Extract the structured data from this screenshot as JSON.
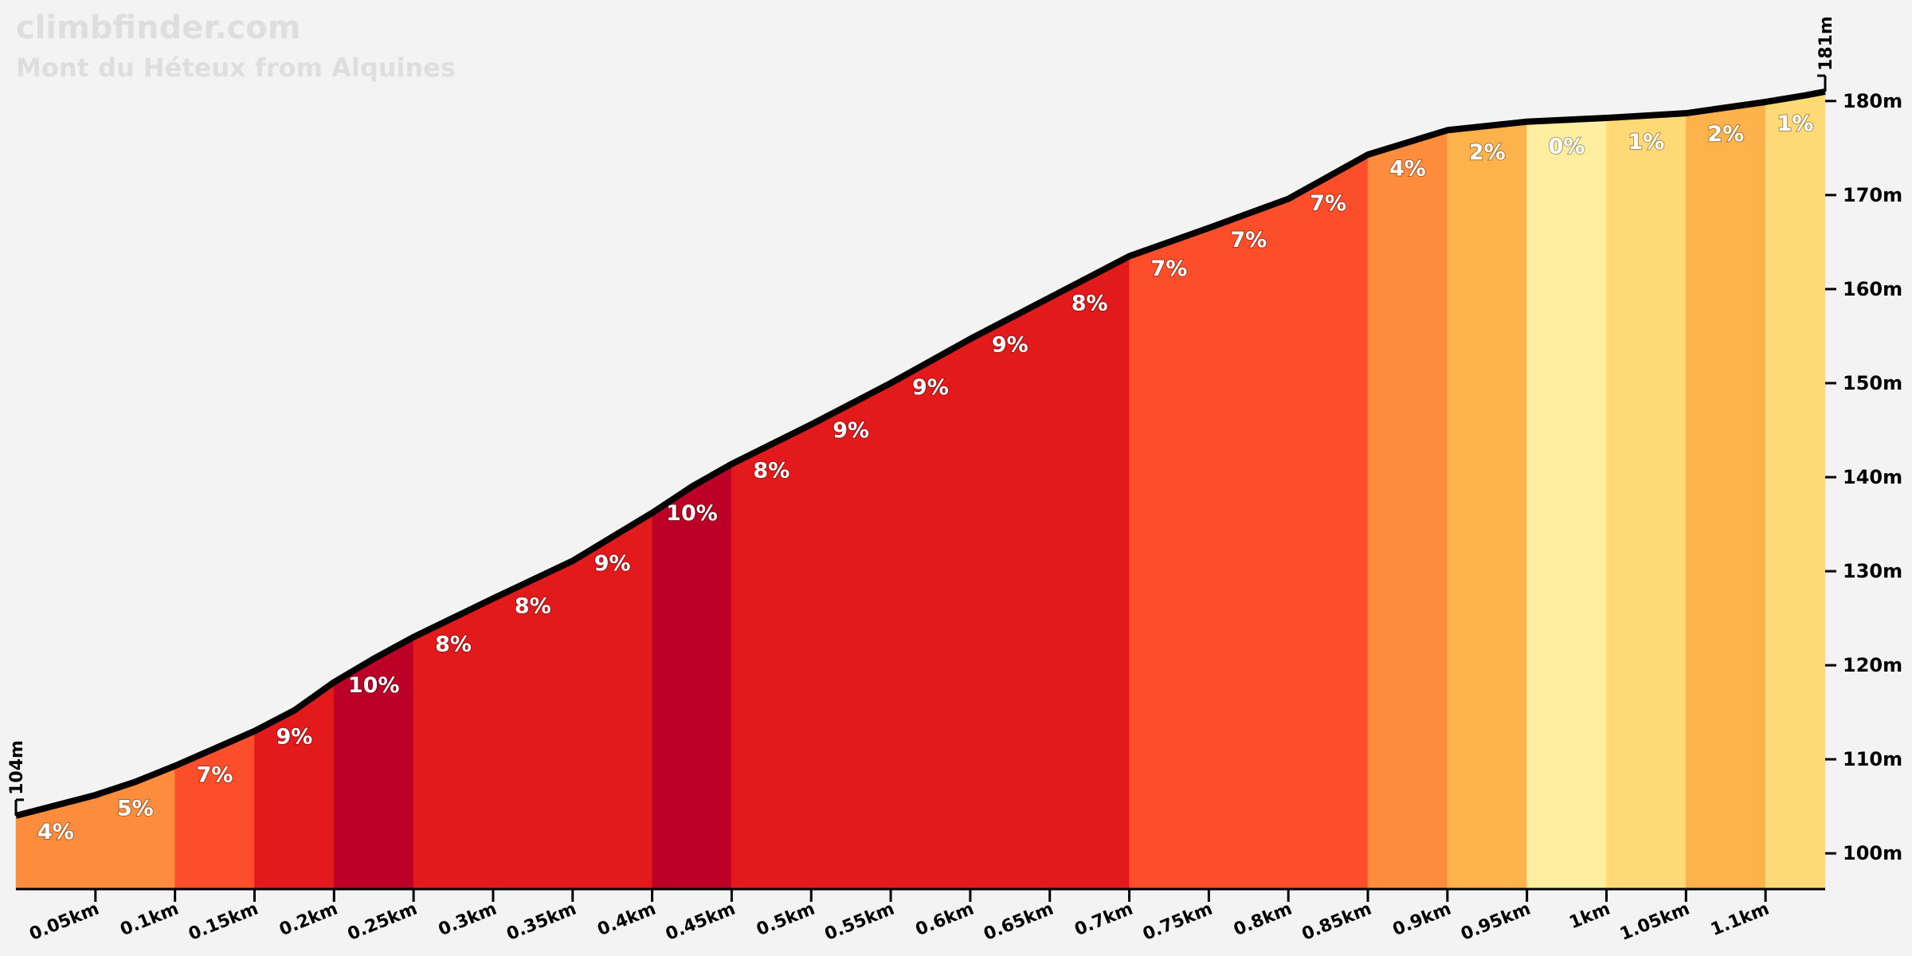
{
  "chart_data": {
    "type": "elevation-profile",
    "title": "climbfinder.com",
    "subtitle": "Mont du Héteux from Alquines",
    "x": [
      0,
      0.05,
      0.075,
      0.1,
      0.15,
      0.175,
      0.2,
      0.225,
      0.25,
      0.3,
      0.35,
      0.4,
      0.425,
      0.45,
      0.5,
      0.55,
      0.6,
      0.65,
      0.7,
      0.75,
      0.8,
      0.85,
      0.9,
      0.95,
      1.0,
      1.05,
      1.1,
      1.125,
      1.1375
    ],
    "elevation": [
      104,
      106.2,
      107.6,
      109.3,
      113,
      115.2,
      118.2,
      120.7,
      123,
      127.1,
      131.1,
      136.2,
      139,
      141.4,
      145.6,
      150,
      154.7,
      159.1,
      163.5,
      166.5,
      169.6,
      174.3,
      176.9,
      177.8,
      178.2,
      178.7,
      179.9,
      180.6,
      181
    ],
    "segments": {
      "bins": [
        0,
        0.05,
        0.1,
        0.15,
        0.2,
        0.25,
        0.3,
        0.35,
        0.4,
        0.45,
        0.5,
        0.55,
        0.6,
        0.65,
        0.7,
        0.75,
        0.8,
        0.85,
        0.9,
        0.95,
        1.0,
        1.05,
        1.1,
        1.1375
      ],
      "grades": [
        4,
        5,
        7,
        9,
        10,
        8,
        8,
        9,
        10,
        8,
        9,
        9,
        9,
        8,
        7,
        7,
        7,
        4,
        2,
        0,
        1,
        2,
        1
      ],
      "value_labels": [
        "4%",
        "5%",
        "7%",
        "9%",
        "10%",
        "8%",
        "8%",
        "9%",
        "10%",
        "8%",
        "9%",
        "9%",
        "9%",
        "8%",
        "7%",
        "7%",
        "7%",
        "4%",
        "2%",
        "0%",
        "1%",
        "2%",
        "1%"
      ],
      "colors": [
        "#fd8d3c",
        "#fd8d3c",
        "#fc4e2a",
        "#e31a1c",
        "#bd0026",
        "#e31a1c",
        "#e31a1c",
        "#e31a1c",
        "#bd0026",
        "#e31a1c",
        "#e31a1c",
        "#e31a1c",
        "#e31a1c",
        "#e31a1c",
        "#fc4e2a",
        "#fc4e2a",
        "#fc4e2a",
        "#fd8d3c",
        "#feb24c",
        "#ffeda0",
        "#fed976",
        "#feb24c",
        "#fed976"
      ]
    },
    "endpoint_labels": [
      {
        "value": 104,
        "label": "104m"
      },
      {
        "value": 181,
        "label": "181m"
      }
    ],
    "xlim": [
      0,
      1.1375
    ],
    "ylim": [
      96.2,
      181
    ],
    "xticks": [
      {
        "value": 0.05,
        "label": "0.05km"
      },
      {
        "value": 0.1,
        "label": "0.1km"
      },
      {
        "value": 0.15,
        "label": "0.15km"
      },
      {
        "value": 0.2,
        "label": "0.2km"
      },
      {
        "value": 0.25,
        "label": "0.25km"
      },
      {
        "value": 0.3,
        "label": "0.3km"
      },
      {
        "value": 0.35,
        "label": "0.35km"
      },
      {
        "value": 0.4,
        "label": "0.4km"
      },
      {
        "value": 0.45,
        "label": "0.45km"
      },
      {
        "value": 0.5,
        "label": "0.5km"
      },
      {
        "value": 0.55,
        "label": "0.55km"
      },
      {
        "value": 0.6,
        "label": "0.6km"
      },
      {
        "value": 0.65,
        "label": "0.65km"
      },
      {
        "value": 0.7,
        "label": "0.7km"
      },
      {
        "value": 0.75,
        "label": "0.75km"
      },
      {
        "value": 0.8,
        "label": "0.8km"
      },
      {
        "value": 0.85,
        "label": "0.85km"
      },
      {
        "value": 0.9,
        "label": "0.9km"
      },
      {
        "value": 0.95,
        "label": "0.95km"
      },
      {
        "value": 1.0,
        "label": "1km"
      },
      {
        "value": 1.05,
        "label": "1.05km"
      },
      {
        "value": 1.1,
        "label": "1.1km"
      }
    ],
    "yticks": [
      {
        "value": 100,
        "label": "100m"
      },
      {
        "value": 110,
        "label": "110m"
      },
      {
        "value": 120,
        "label": "120m"
      },
      {
        "value": 130,
        "label": "130m"
      },
      {
        "value": 140,
        "label": "140m"
      },
      {
        "value": 150,
        "label": "150m"
      },
      {
        "value": 160,
        "label": "160m"
      },
      {
        "value": 170,
        "label": "170m"
      },
      {
        "value": 180,
        "label": "180m"
      }
    ],
    "line_color": "#000000"
  }
}
